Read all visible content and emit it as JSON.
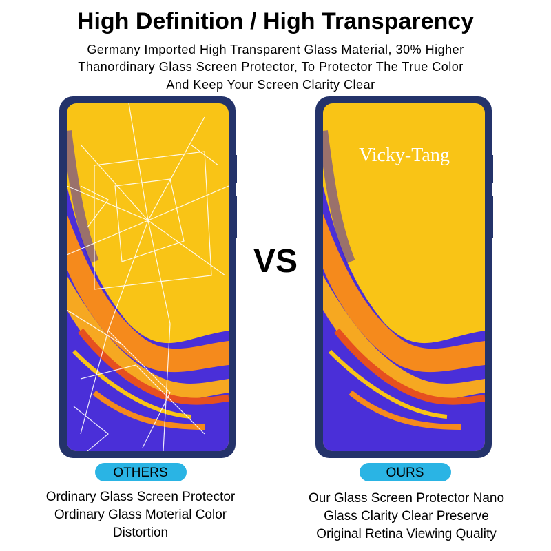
{
  "header": {
    "title": "High Definition / High Transparency",
    "subtitle": [
      "Germany Imported High Transparent Glass Material, 30% Higher",
      "Thanordinary Glass Screen Protector, To Protector The True Color",
      "And Keep Your Screen Clarity Clear"
    ]
  },
  "vs": "VS",
  "left": {
    "label": "OTHERS",
    "description": [
      "Ordinary Glass Screen Protector",
      "Ordinary Glass Moterial Color",
      "Distortion"
    ]
  },
  "right": {
    "watermark": "Vicky-Tang",
    "label": "OURS",
    "description": [
      "Our Glass Screen Protector Nano",
      "Glass Clarity Clear Preserve",
      "Original Retina Viewing Quality"
    ]
  }
}
